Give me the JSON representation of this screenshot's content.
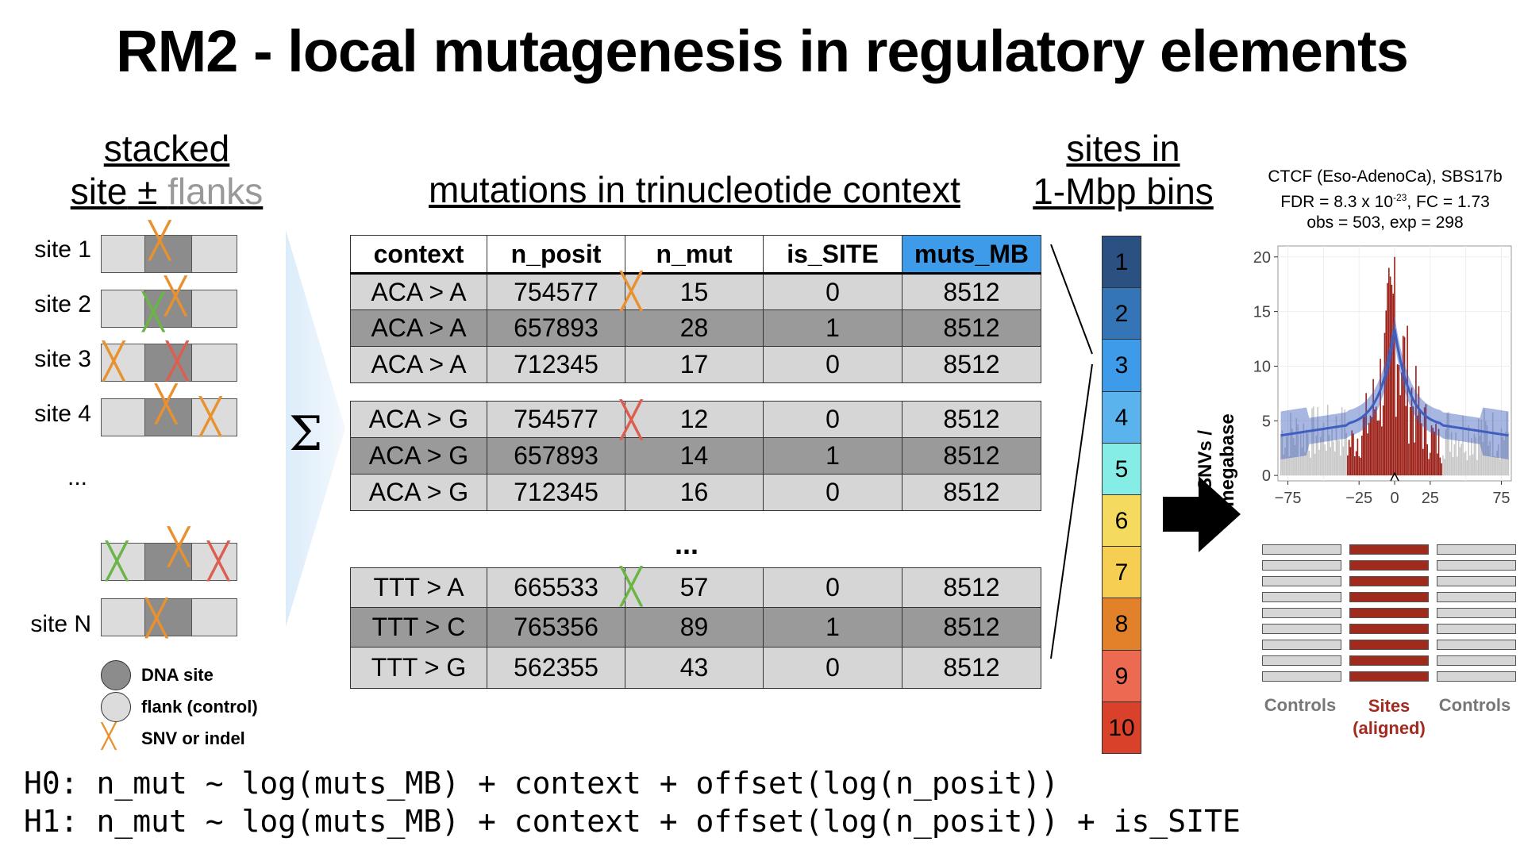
{
  "title": "RM2 - local mutagenesis in regulatory elements",
  "left_panel": {
    "heading_line1": "stacked",
    "heading_site": "site",
    "heading_pm": " ± ",
    "heading_flanks": "flanks",
    "sites": [
      "site 1",
      "site 2",
      "site 3",
      "site 4"
    ],
    "ellipsis": "...",
    "last_site": "site N",
    "legend": {
      "dna_site": "DNA site",
      "flank": "flank (control)",
      "snv": "SNV or indel"
    },
    "x_glyph": "╳"
  },
  "sum_symbol": "Σ",
  "table": {
    "heading": "mutations in trinucleotide context",
    "columns": [
      "context",
      "n_posit",
      "n_mut",
      "is_SITE",
      "muts_MB"
    ],
    "group1": [
      [
        "ACA > A",
        "754577",
        "15",
        "0",
        "8512"
      ],
      [
        "ACA > A",
        "657893",
        "28",
        "1",
        "8512"
      ],
      [
        "ACA > A",
        "712345",
        "17",
        "0",
        "8512"
      ]
    ],
    "group2": [
      [
        "ACA > G",
        "754577",
        "12",
        "0",
        "8512"
      ],
      [
        "ACA > G",
        "657893",
        "14",
        "1",
        "8512"
      ],
      [
        "ACA > G",
        "712345",
        "16",
        "0",
        "8512"
      ]
    ],
    "ellipsis": "...",
    "group3": [
      [
        "TTT > A",
        "665533",
        "57",
        "0",
        "8512"
      ],
      [
        "TTT > C",
        "765356",
        "89",
        "1",
        "8512"
      ],
      [
        "TTT > G",
        "562355",
        "43",
        "0",
        "8512"
      ]
    ]
  },
  "bins": {
    "heading_line1": "sites in",
    "heading_line2": "1-Mbp bins",
    "labels": [
      "1",
      "2",
      "3",
      "4",
      "5",
      "6",
      "7",
      "8",
      "9",
      "10"
    ],
    "colors": [
      "#2b5082",
      "#3475b8",
      "#3d9be9",
      "#5bb3ee",
      "#86ece6",
      "#f4da5f",
      "#f6cf52",
      "#e3812b",
      "#ec6a52",
      "#d9412a"
    ]
  },
  "plot": {
    "title_line1": "CTCF (Eso-AdenoCa), SBS17b",
    "title_line2_pre": "FDR = 8.3 x 10",
    "title_line2_exp": "-23",
    "title_line2_post": ", FC = 1.73",
    "title_line3": "obs = 503, exp = 298",
    "ylabel": "SNVs / megabase",
    "yticks": [
      "20",
      "15",
      "10",
      "5",
      "0"
    ],
    "xticks": [
      "−75",
      "−25",
      "0",
      "25",
      "75"
    ],
    "site_color": "#9c1f17",
    "control_color": "#c8c8c8",
    "trend_color": "#3f5fbf"
  },
  "controls": {
    "left": "Controls",
    "middle_line1": "Sites",
    "middle_line2": "(aligned)",
    "right": "Controls"
  },
  "formulas": {
    "h0": "H0: n_mut ~ log(muts_MB) + context + offset(log(n_posit))",
    "h1": "H1: n_mut ~ log(muts_MB) + context + offset(log(n_posit)) + is_SITE"
  }
}
